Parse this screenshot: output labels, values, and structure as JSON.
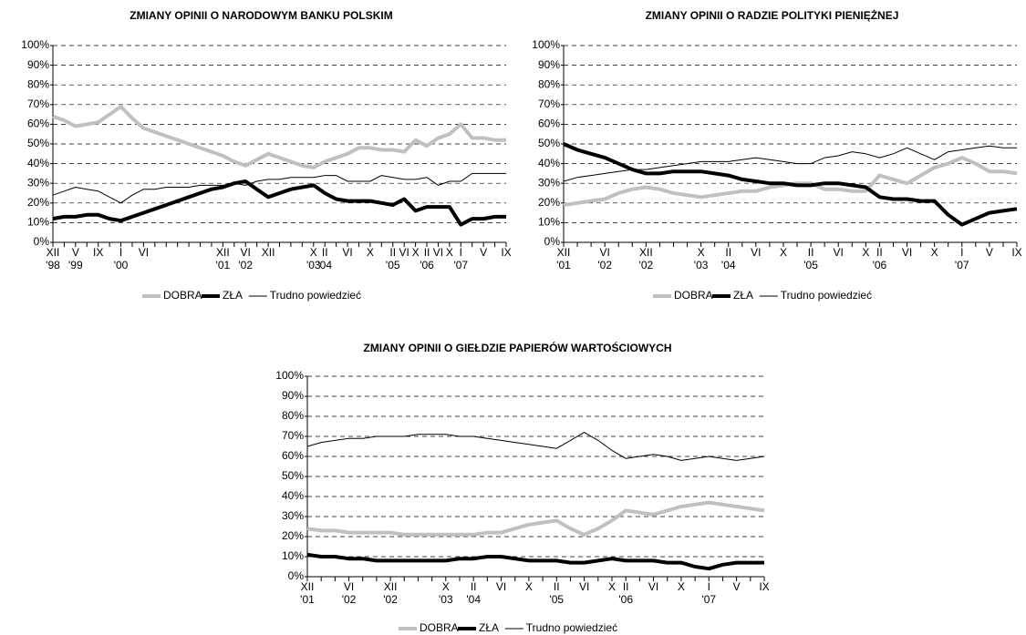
{
  "chart_data": [
    {
      "type": "line",
      "title": "ZMIANY OPINII O NARODOWYM BANKU POLSKIM",
      "categories": [
        "XII",
        null,
        "V",
        null,
        "IX",
        null,
        "I",
        null,
        "VI",
        null,
        null,
        null,
        null,
        null,
        null,
        "XII",
        null,
        "VI",
        null,
        "XII",
        null,
        null,
        null,
        "X",
        "II",
        null,
        "VI",
        null,
        "X",
        null,
        "II",
        "VI",
        "X",
        "II",
        "VI",
        "X",
        "I",
        null,
        "V",
        null,
        "IX"
      ],
      "category_years": [
        "'98",
        null,
        "'99",
        null,
        null,
        null,
        "'00",
        null,
        null,
        null,
        null,
        null,
        null,
        null,
        null,
        "'01",
        null,
        "'02",
        null,
        null,
        null,
        null,
        null,
        "'03",
        "'04",
        null,
        null,
        null,
        null,
        null,
        "'05",
        null,
        null,
        "'06",
        null,
        null,
        "'07",
        null,
        null,
        null,
        null
      ],
      "series": [
        {
          "name": "DOBRA",
          "color": "#c0c0c0",
          "line_width": 4,
          "values": [
            64,
            62,
            59,
            60,
            61,
            65,
            69,
            63,
            58,
            56,
            54,
            52,
            50,
            48,
            46,
            44,
            41,
            39,
            42,
            45,
            43,
            41,
            39,
            38,
            41,
            43,
            45,
            48,
            48,
            47,
            47,
            46,
            52,
            49,
            53,
            55,
            60,
            53,
            53,
            52,
            52
          ]
        },
        {
          "name": "ZŁA",
          "color": "#000000",
          "line_width": 4,
          "values": [
            12,
            13,
            13,
            14,
            14,
            12,
            11,
            13,
            15,
            17,
            19,
            21,
            23,
            25,
            27,
            28,
            30,
            31,
            27,
            23,
            25,
            27,
            28,
            29,
            25,
            22,
            21,
            21,
            21,
            20,
            19,
            22,
            16,
            18,
            18,
            18,
            9,
            12,
            12,
            13,
            13
          ]
        },
        {
          "name": "Trudno powiedzieć",
          "color": "#000000",
          "line_width": 1,
          "values": [
            24,
            26,
            28,
            27,
            26,
            23,
            20,
            24,
            27,
            27,
            28,
            28,
            28,
            29,
            29,
            29,
            30,
            29,
            31,
            32,
            32,
            33,
            33,
            33,
            34,
            34,
            31,
            31,
            31,
            34,
            33,
            32,
            32,
            33,
            29,
            31,
            31,
            35,
            35,
            35,
            35
          ]
        }
      ],
      "ylim": [
        0,
        100
      ],
      "yticks": [
        {
          "value": 0,
          "label": "0%"
        },
        {
          "value": 10,
          "label": "10%"
        },
        {
          "value": 20,
          "label": "20%"
        },
        {
          "value": 30,
          "label": "30%"
        },
        {
          "value": 40,
          "label": "40%"
        },
        {
          "value": 50,
          "label": "50%"
        },
        {
          "value": 60,
          "label": "60%"
        },
        {
          "value": 70,
          "label": "70%"
        },
        {
          "value": 80,
          "label": "80%"
        },
        {
          "value": 90,
          "label": "90%"
        },
        {
          "value": 100,
          "label": "100%"
        }
      ],
      "grid": true
    },
    {
      "type": "line",
      "title": "ZMIANY OPINII O RADZIE POLITYKI PIENIĘŻNEJ",
      "categories": [
        "XII",
        null,
        null,
        "VI",
        null,
        null,
        "XII",
        null,
        null,
        null,
        "X",
        null,
        "II",
        null,
        "VI",
        null,
        "X",
        null,
        "II",
        null,
        "VI",
        null,
        "X",
        "II",
        null,
        "VI",
        null,
        "X",
        null,
        "I",
        null,
        "V",
        null,
        "IX"
      ],
      "category_years": [
        "'01",
        null,
        null,
        "'02",
        null,
        null,
        "'02",
        null,
        null,
        null,
        "'03",
        null,
        "'04",
        null,
        null,
        null,
        null,
        null,
        "'05",
        null,
        null,
        null,
        null,
        "'06",
        null,
        null,
        null,
        null,
        null,
        "'07",
        null,
        null,
        null,
        null
      ],
      "series": [
        {
          "name": "DOBRA",
          "color": "#c0c0c0",
          "line_width": 4,
          "values": [
            19,
            20,
            21,
            22,
            25,
            27,
            28,
            27,
            25,
            24,
            23,
            24,
            25,
            26,
            26,
            28,
            29,
            30,
            30,
            27,
            27,
            26,
            26,
            34,
            32,
            30,
            34,
            38,
            40,
            43,
            40,
            36,
            36,
            35
          ]
        },
        {
          "name": "ZŁA",
          "color": "#000000",
          "line_width": 4,
          "values": [
            50,
            47,
            45,
            43,
            40,
            37,
            35,
            35,
            36,
            36,
            36,
            35,
            34,
            32,
            31,
            30,
            30,
            29,
            29,
            30,
            30,
            29,
            28,
            23,
            22,
            22,
            21,
            21,
            14,
            9,
            12,
            15,
            16,
            17
          ]
        },
        {
          "name": "Trudno powiedzieć",
          "color": "#000000",
          "line_width": 1,
          "values": [
            31,
            33,
            34,
            35,
            36,
            37,
            37,
            38,
            39,
            40,
            41,
            41,
            41,
            42,
            43,
            42,
            41,
            40,
            40,
            43,
            44,
            46,
            45,
            43,
            45,
            48,
            45,
            42,
            46,
            47,
            48,
            49,
            48,
            48
          ]
        }
      ],
      "ylim": [
        0,
        100
      ],
      "yticks": [
        {
          "value": 0,
          "label": "0%"
        },
        {
          "value": 10,
          "label": "10%"
        },
        {
          "value": 20,
          "label": "20%"
        },
        {
          "value": 30,
          "label": "30%"
        },
        {
          "value": 40,
          "label": "40%"
        },
        {
          "value": 50,
          "label": "50%"
        },
        {
          "value": 60,
          "label": "60%"
        },
        {
          "value": 70,
          "label": "70%"
        },
        {
          "value": 80,
          "label": "80%"
        },
        {
          "value": 90,
          "label": "90%"
        },
        {
          "value": 100,
          "label": "100%"
        }
      ],
      "grid": true
    },
    {
      "type": "line",
      "title": "ZMIANY OPINII O GIEŁDZIE PAPIERÓW WARTOŚCIOWYCH",
      "categories": [
        "XII",
        null,
        null,
        "VI",
        null,
        null,
        "XII",
        null,
        null,
        null,
        "X",
        null,
        "II",
        null,
        "VI",
        null,
        "X",
        null,
        "II",
        null,
        "VI",
        null,
        "X",
        "II",
        null,
        "VI",
        null,
        "X",
        null,
        "I",
        null,
        "V",
        null,
        "IX"
      ],
      "category_years": [
        "'01",
        null,
        null,
        "'02",
        null,
        null,
        "'02",
        null,
        null,
        null,
        "'03",
        null,
        "'04",
        null,
        null,
        null,
        null,
        null,
        "'05",
        null,
        null,
        null,
        null,
        "'06",
        null,
        null,
        null,
        null,
        null,
        "'07",
        null,
        null,
        null,
        null
      ],
      "series": [
        {
          "name": "DOBRA",
          "color": "#c0c0c0",
          "line_width": 4,
          "values": [
            24,
            23,
            23,
            22,
            22,
            22,
            22,
            21,
            21,
            21,
            21,
            21,
            21,
            22,
            22,
            24,
            26,
            27,
            28,
            24,
            21,
            24,
            28,
            33,
            32,
            31,
            33,
            35,
            36,
            37,
            36,
            35,
            34,
            33
          ]
        },
        {
          "name": "ZŁA",
          "color": "#000000",
          "line_width": 4,
          "values": [
            11,
            10,
            10,
            9,
            9,
            8,
            8,
            8,
            8,
            8,
            8,
            9,
            9,
            10,
            10,
            9,
            8,
            8,
            8,
            7,
            7,
            8,
            9,
            8,
            8,
            8,
            7,
            7,
            5,
            4,
            6,
            7,
            7,
            7
          ]
        },
        {
          "name": "Trudno powiedzieć",
          "color": "#000000",
          "line_width": 1,
          "values": [
            65,
            67,
            68,
            69,
            69,
            70,
            70,
            70,
            71,
            71,
            71,
            70,
            70,
            69,
            68,
            67,
            66,
            65,
            64,
            68,
            72,
            68,
            63,
            59,
            60,
            61,
            60,
            58,
            59,
            60,
            59,
            58,
            59,
            60
          ]
        }
      ],
      "ylim": [
        0,
        100
      ],
      "yticks": [
        {
          "value": 0,
          "label": "0%"
        },
        {
          "value": 10,
          "label": "10%"
        },
        {
          "value": 20,
          "label": "20%"
        },
        {
          "value": 30,
          "label": "30%"
        },
        {
          "value": 40,
          "label": "40%"
        },
        {
          "value": 50,
          "label": "50%"
        },
        {
          "value": 60,
          "label": "60%"
        },
        {
          "value": 70,
          "label": "70%"
        },
        {
          "value": 80,
          "label": "80%"
        },
        {
          "value": 90,
          "label": "90%"
        },
        {
          "value": 100,
          "label": "100%"
        }
      ],
      "grid": true
    }
  ]
}
